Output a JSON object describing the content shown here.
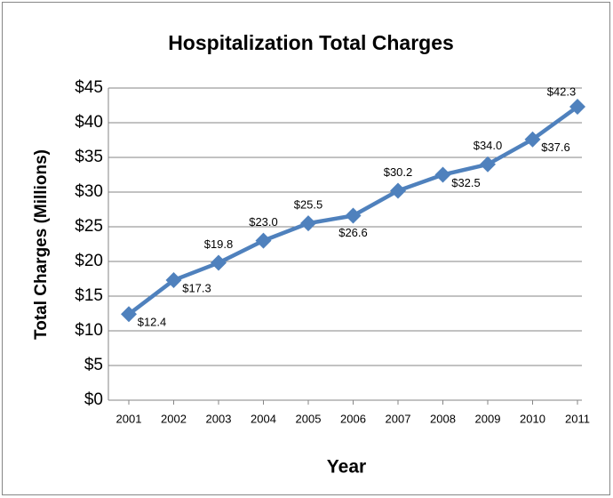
{
  "chart_data": {
    "type": "line",
    "title": "Hospitalization Total Charges",
    "x_label": "Year",
    "y_label": "Total Charges (Millions)",
    "categories": [
      "2001",
      "2002",
      "2003",
      "2004",
      "2005",
      "2006",
      "2007",
      "2008",
      "2009",
      "2010",
      "2011"
    ],
    "series": [
      {
        "name": "Total Charges",
        "color": "#4f81bd",
        "values": [
          12.4,
          17.3,
          19.8,
          23.0,
          25.5,
          26.6,
          30.2,
          32.5,
          34.0,
          37.6,
          42.3
        ],
        "value_labels": [
          "$12.4",
          "$17.3",
          "$19.8",
          "$23.0",
          "$25.5",
          "$26.6",
          "$30.2",
          "$32.5",
          "$34.0",
          "$37.6",
          "$42.3"
        ]
      }
    ],
    "ylim": [
      0,
      45
    ],
    "yticks": [
      {
        "value": 0,
        "label": "$0"
      },
      {
        "value": 5,
        "label": "$5"
      },
      {
        "value": 10,
        "label": "$10"
      },
      {
        "value": 15,
        "label": "$15"
      },
      {
        "value": 20,
        "label": "$20"
      },
      {
        "value": 25,
        "label": "$25"
      },
      {
        "value": 30,
        "label": "$30"
      },
      {
        "value": 35,
        "label": "$35"
      },
      {
        "value": 40,
        "label": "$40"
      },
      {
        "value": 45,
        "label": "$45"
      }
    ],
    "grid": true
  }
}
